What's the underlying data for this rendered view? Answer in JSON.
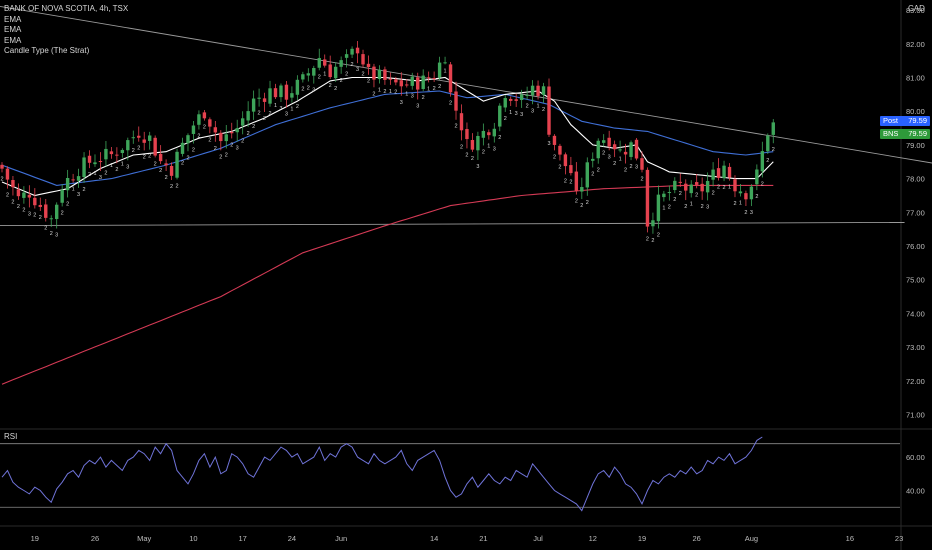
{
  "header": {
    "symbol_line": "BANK OF NOVA SCOTIA, 4h, TSX",
    "indicators": [
      "EMA",
      "EMA",
      "EMA",
      "Candle Type (The Strat)"
    ],
    "currency": "CAD"
  },
  "price_tags": {
    "post_label": "Post",
    "post_value": "79.59",
    "ticker_label": "BNS",
    "ticker_value": "79.59"
  },
  "colors": {
    "background": "#000000",
    "candle_up": "#3ea55a",
    "candle_down": "#e5424f",
    "ema_fast": "#ffffff",
    "ema_mid": "#3f6fd6",
    "ema_slow": "#d43a55",
    "trendline": "#8a8a8a",
    "rsi_line": "#6f73d8",
    "post_tag": "#2962ff",
    "ticker_tag": "#2e9a3a"
  },
  "chart_data": [
    {
      "type": "candlestick",
      "title": "BANK OF NOVA SCOTIA, 4h, TSX",
      "ylim": [
        70.6,
        83.3
      ],
      "price_ticks": [
        "83.00",
        "82.00",
        "81.00",
        "80.00",
        "79.00",
        "78.00",
        "77.00",
        "76.00",
        "75.00",
        "74.00",
        "73.00",
        "72.00",
        "71.00"
      ],
      "x_ticks": [
        "19",
        "26",
        "May",
        "10",
        "17",
        "24",
        "Jun",
        "14",
        "21",
        "Jul",
        "12",
        "19",
        "26",
        "Aug",
        "16",
        "23"
      ],
      "last_price": 79.59,
      "close_anchors": [
        [
          0,
          78.3
        ],
        [
          3,
          77.4
        ],
        [
          5,
          77.6
        ],
        [
          7,
          77.2
        ],
        [
          9,
          76.8
        ],
        [
          11,
          77.8
        ],
        [
          14,
          78.3
        ],
        [
          17,
          78.6
        ],
        [
          20,
          78.7
        ],
        [
          23,
          79.1
        ],
        [
          25,
          79.4
        ],
        [
          27,
          79.2
        ],
        [
          29,
          78.5
        ],
        [
          31,
          78.3
        ],
        [
          33,
          79.0
        ],
        [
          35,
          79.6
        ],
        [
          37,
          80.0
        ],
        [
          40,
          79.1
        ],
        [
          43,
          79.5
        ],
        [
          46,
          80.3
        ],
        [
          49,
          80.6
        ],
        [
          52,
          80.5
        ],
        [
          55,
          80.9
        ],
        [
          58,
          81.6
        ],
        [
          60,
          81.2
        ],
        [
          63,
          81.5
        ],
        [
          65,
          81.9
        ],
        [
          67,
          81.1
        ],
        [
          69,
          81.0
        ],
        [
          71,
          80.8
        ],
        [
          74,
          80.8
        ],
        [
          77,
          80.9
        ],
        [
          79,
          81.1
        ],
        [
          81,
          81.7
        ],
        [
          82,
          80.5
        ],
        [
          84,
          79.6
        ],
        [
          85,
          79.0
        ],
        [
          87,
          79.2
        ],
        [
          90,
          79.7
        ],
        [
          92,
          80.6
        ],
        [
          95,
          80.3
        ],
        [
          97,
          80.7
        ],
        [
          99,
          80.6
        ],
        [
          100,
          79.5
        ],
        [
          102,
          78.6
        ],
        [
          104,
          78.2
        ],
        [
          105,
          77.4
        ],
        [
          107,
          78.3
        ],
        [
          109,
          79.2
        ],
        [
          111,
          79.2
        ],
        [
          113,
          78.8
        ],
        [
          115,
          79.0
        ],
        [
          117,
          78.4
        ],
        [
          118,
          76.7
        ],
        [
          120,
          77.3
        ],
        [
          122,
          77.6
        ],
        [
          124,
          77.8
        ],
        [
          126,
          77.6
        ],
        [
          128,
          77.7
        ],
        [
          130,
          78.1
        ],
        [
          132,
          78.4
        ],
        [
          134,
          77.8
        ],
        [
          136,
          77.6
        ],
        [
          138,
          78.1
        ],
        [
          140,
          79.4
        ],
        [
          141,
          79.6
        ]
      ],
      "ema_fast": [
        [
          0,
          77.9
        ],
        [
          6,
          77.5
        ],
        [
          12,
          77.7
        ],
        [
          18,
          78.3
        ],
        [
          24,
          78.7
        ],
        [
          30,
          78.8
        ],
        [
          36,
          79.2
        ],
        [
          42,
          79.4
        ],
        [
          48,
          79.8
        ],
        [
          54,
          80.3
        ],
        [
          60,
          80.9
        ],
        [
          64,
          81.0
        ],
        [
          70,
          81.0
        ],
        [
          76,
          80.9
        ],
        [
          81,
          81.0
        ],
        [
          84,
          80.7
        ],
        [
          88,
          80.3
        ],
        [
          92,
          80.5
        ],
        [
          98,
          80.6
        ],
        [
          101,
          80.3
        ],
        [
          104,
          79.6
        ],
        [
          108,
          79.0
        ],
        [
          112,
          78.9
        ],
        [
          116,
          79.0
        ],
        [
          118,
          78.5
        ],
        [
          122,
          78.2
        ],
        [
          128,
          78.1
        ],
        [
          134,
          78.0
        ],
        [
          138,
          78.0
        ],
        [
          141,
          78.5
        ]
      ],
      "ema_mid": [
        [
          0,
          78.4
        ],
        [
          10,
          77.8
        ],
        [
          20,
          78.0
        ],
        [
          30,
          78.4
        ],
        [
          40,
          78.9
        ],
        [
          50,
          79.6
        ],
        [
          60,
          80.1
        ],
        [
          70,
          80.5
        ],
        [
          80,
          80.6
        ],
        [
          85,
          80.4
        ],
        [
          92,
          80.5
        ],
        [
          100,
          80.2
        ],
        [
          106,
          79.7
        ],
        [
          112,
          79.5
        ],
        [
          118,
          79.4
        ],
        [
          124,
          79.1
        ],
        [
          130,
          78.8
        ],
        [
          136,
          78.7
        ],
        [
          141,
          78.8
        ]
      ],
      "ema_slow": [
        [
          0,
          71.9
        ],
        [
          20,
          73.2
        ],
        [
          40,
          74.5
        ],
        [
          55,
          75.8
        ],
        [
          70,
          76.6
        ],
        [
          82,
          77.2
        ],
        [
          95,
          77.5
        ],
        [
          110,
          77.7
        ],
        [
          125,
          77.8
        ],
        [
          141,
          77.8
        ]
      ],
      "resistance_line": [
        [
          -33,
          84.0
        ],
        [
          176,
          78.3
        ]
      ],
      "support_line": [
        [
          -10,
          76.6
        ],
        [
          165,
          76.7
        ]
      ]
    },
    {
      "type": "line",
      "title": "RSI",
      "ylim": [
        20,
        75
      ],
      "y_ticks": [
        "60.00",
        "40.00"
      ],
      "bands": [
        68,
        30
      ],
      "values": [
        48,
        52,
        45,
        42,
        40,
        38,
        42,
        40,
        36,
        33,
        41,
        45,
        50,
        52,
        48,
        55,
        58,
        56,
        60,
        54,
        58,
        55,
        52,
        58,
        60,
        64,
        62,
        58,
        66,
        62,
        68,
        64,
        52,
        48,
        44,
        50,
        58,
        62,
        54,
        60,
        50,
        52,
        62,
        60,
        56,
        50,
        48,
        54,
        60,
        58,
        62,
        66,
        64,
        60,
        62,
        56,
        58,
        60,
        66,
        58,
        62,
        60,
        66,
        68,
        66,
        60,
        58,
        56,
        62,
        58,
        56,
        58,
        60,
        64,
        56,
        52,
        58,
        60,
        62,
        64,
        58,
        48,
        40,
        36,
        38,
        44,
        48,
        42,
        46,
        50,
        46,
        44,
        48,
        46,
        52,
        50,
        48,
        56,
        52,
        48,
        44,
        40,
        38,
        36,
        34,
        32,
        28,
        36,
        44,
        50,
        52,
        48,
        54,
        50,
        44,
        42,
        38,
        32,
        40,
        46,
        44,
        48,
        50,
        48,
        52,
        50,
        54,
        50,
        52,
        58,
        56,
        60,
        58,
        62,
        56,
        58,
        60,
        64,
        70,
        72
      ]
    }
  ]
}
